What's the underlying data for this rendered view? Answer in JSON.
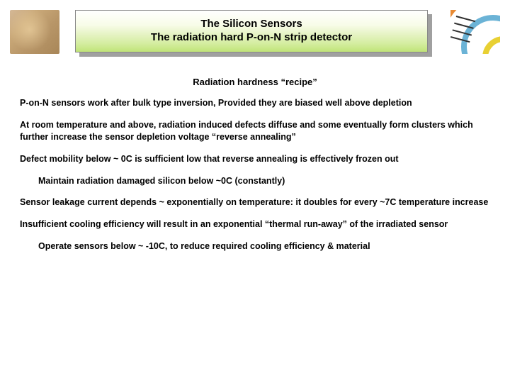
{
  "header": {
    "title_line1": "The Silicon Sensors",
    "title_line2": "The radiation hard P-on-N strip detector",
    "title_box_gradient_top": "#ffffff",
    "title_box_gradient_mid": "#e8f4c8",
    "title_box_gradient_bottom": "#c0e478",
    "shadow_color": "#a0a0a0",
    "border_color": "#888888"
  },
  "left_image": {
    "semantic": "silicon-sensor-micrograph",
    "bg_color": "#c9a878"
  },
  "right_image": {
    "semantic": "detector-cross-section-diagram",
    "arc_colors": [
      "#e8d033",
      "#6bb3d6",
      "#e88a33",
      "#7ab87a"
    ]
  },
  "subtitle": "Radiation hardness “recipe”",
  "paragraphs": {
    "p1": "P-on-N sensors work after bulk type inversion, Provided they are biased well above depletion",
    "p2": "At room temperature and above, radiation induced defects diffuse and some eventually form clusters which further increase the sensor depletion voltage “reverse annealing”",
    "p3": "Defect mobility below ~ 0C is sufficient low that reverse annealing is effectively frozen out",
    "p4": "Maintain radiation damaged silicon below ~0C (constantly)",
    "p5": "Sensor leakage current depends ~ exponentially on temperature: it doubles for every ~7C temperature increase",
    "p6": "Insufficient cooling efficiency will result in an exponential “thermal run-away” of the irradiated sensor",
    "p7": "Operate sensors below ~ -10C, to reduce required cooling efficiency & material"
  },
  "typography": {
    "title_fontsize": 15,
    "subtitle_fontsize": 13,
    "body_fontsize": 12.5,
    "font_weight": "bold",
    "text_color": "#000000",
    "background_color": "#ffffff"
  }
}
